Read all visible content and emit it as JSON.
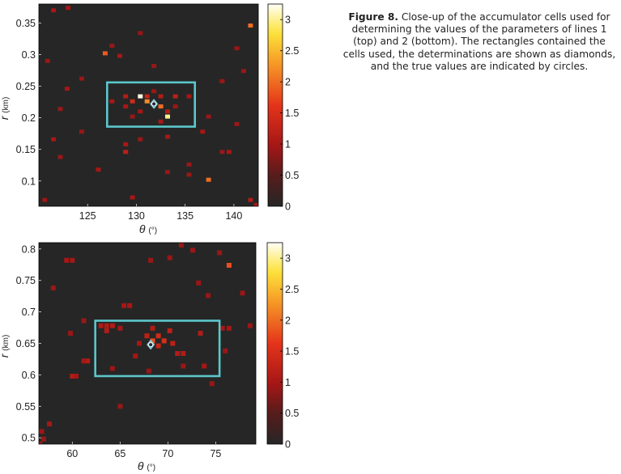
{
  "caption": {
    "label": "Figure 8.",
    "text": "Close-up of the accumulator cells used for determining the values of the parameters of lines 1 (top) and 2 (bottom). The rectangles contained the cells used, the determinations are shown as diamonds, and the true values are indicated by circles."
  },
  "chart_data": [
    {
      "type": "heatmap",
      "title": "",
      "xlabel": "θ (°)",
      "ylabel": "r (km)",
      "xlim": [
        120,
        142.5
      ],
      "ylim": [
        0.06,
        0.38
      ],
      "xticks": [
        125,
        130,
        135,
        140
      ],
      "yticks": [
        0.1,
        0.15,
        0.2,
        0.25,
        0.3,
        0.35
      ],
      "yticklabels": [
        "0.1",
        "0.15",
        "0.2",
        "0.25",
        "0.3",
        "0.35"
      ],
      "colorbar": {
        "range": [
          0,
          3.25
        ],
        "ticks": [
          0,
          0.5,
          1,
          1.5,
          2,
          2.5,
          3
        ],
        "ticklabels": [
          "0",
          "0.5",
          "1",
          "1.5",
          "2",
          "2.5",
          "3"
        ]
      },
      "background_value": 0,
      "rectangle": {
        "x": [
          127,
          136
        ],
        "y": [
          0.186,
          0.256
        ]
      },
      "determination": {
        "x": 131.8,
        "y": 0.222
      },
      "true_value": {
        "x": 131.8,
        "y": 0.222
      },
      "cells": [
        {
          "x": 130.4,
          "y": 0.234,
          "v": 3.2
        },
        {
          "x": 133.2,
          "y": 0.202,
          "v": 3.0
        },
        {
          "x": 131.1,
          "y": 0.226,
          "v": 2.2
        },
        {
          "x": 132.5,
          "y": 0.218,
          "v": 2.0
        },
        {
          "x": 129.6,
          "y": 0.226,
          "v": 1.4
        },
        {
          "x": 131.1,
          "y": 0.234,
          "v": 1.3
        },
        {
          "x": 134.0,
          "y": 0.234,
          "v": 1.2
        },
        {
          "x": 128.9,
          "y": 0.234,
          "v": 1.1
        },
        {
          "x": 132.5,
          "y": 0.234,
          "v": 1.1
        },
        {
          "x": 135.4,
          "y": 0.234,
          "v": 1.0
        },
        {
          "x": 127.5,
          "y": 0.226,
          "v": 1.0
        },
        {
          "x": 133.2,
          "y": 0.21,
          "v": 1.1
        },
        {
          "x": 130.4,
          "y": 0.21,
          "v": 1.0
        },
        {
          "x": 132.5,
          "y": 0.194,
          "v": 1.0
        },
        {
          "x": 134.0,
          "y": 0.218,
          "v": 0.9
        },
        {
          "x": 128.9,
          "y": 0.218,
          "v": 1.0
        },
        {
          "x": 131.8,
          "y": 0.242,
          "v": 0.9
        },
        {
          "x": 129.6,
          "y": 0.202,
          "v": 0.9
        },
        {
          "x": 126.8,
          "y": 0.302,
          "v": 1.9
        },
        {
          "x": 120.9,
          "y": 0.29,
          "v": 0.9
        },
        {
          "x": 121.5,
          "y": 0.37,
          "v": 1.0
        },
        {
          "x": 123.0,
          "y": 0.374,
          "v": 1.0
        },
        {
          "x": 127.5,
          "y": 0.314,
          "v": 0.9
        },
        {
          "x": 130.4,
          "y": 0.334,
          "v": 0.9
        },
        {
          "x": 128.3,
          "y": 0.298,
          "v": 1.0
        },
        {
          "x": 138.8,
          "y": 0.258,
          "v": 0.9
        },
        {
          "x": 141.7,
          "y": 0.346,
          "v": 2.0
        },
        {
          "x": 141.0,
          "y": 0.274,
          "v": 0.9
        },
        {
          "x": 140.3,
          "y": 0.31,
          "v": 0.9
        },
        {
          "x": 122.2,
          "y": 0.214,
          "v": 0.9
        },
        {
          "x": 121.5,
          "y": 0.166,
          "v": 1.0
        },
        {
          "x": 124.4,
          "y": 0.178,
          "v": 0.9
        },
        {
          "x": 128.9,
          "y": 0.158,
          "v": 1.0
        },
        {
          "x": 130.4,
          "y": 0.166,
          "v": 0.9
        },
        {
          "x": 133.2,
          "y": 0.17,
          "v": 1.0
        },
        {
          "x": 136.8,
          "y": 0.178,
          "v": 1.0
        },
        {
          "x": 139.5,
          "y": 0.146,
          "v": 1.0
        },
        {
          "x": 138.8,
          "y": 0.146,
          "v": 0.9
        },
        {
          "x": 137.4,
          "y": 0.102,
          "v": 2.0
        },
        {
          "x": 135.4,
          "y": 0.11,
          "v": 0.9
        },
        {
          "x": 128.9,
          "y": 0.146,
          "v": 1.2
        },
        {
          "x": 126.1,
          "y": 0.118,
          "v": 1.0
        },
        {
          "x": 133.2,
          "y": 0.114,
          "v": 0.9
        },
        {
          "x": 122.2,
          "y": 0.138,
          "v": 0.9
        },
        {
          "x": 129.6,
          "y": 0.074,
          "v": 1.0
        },
        {
          "x": 141.7,
          "y": 0.07,
          "v": 1.1
        },
        {
          "x": 142.3,
          "y": 0.062,
          "v": 1.0
        },
        {
          "x": 120.6,
          "y": 0.07,
          "v": 0.9
        },
        {
          "x": 131.8,
          "y": 0.282,
          "v": 0.9
        },
        {
          "x": 124.4,
          "y": 0.262,
          "v": 0.9
        },
        {
          "x": 137.4,
          "y": 0.202,
          "v": 0.9
        },
        {
          "x": 122.9,
          "y": 0.246,
          "v": 1.0
        },
        {
          "x": 135.4,
          "y": 0.126,
          "v": 0.9
        },
        {
          "x": 140.3,
          "y": 0.19,
          "v": 0.9
        }
      ]
    },
    {
      "type": "heatmap",
      "title": "",
      "xlabel": "θ (°)",
      "ylabel": "r (km)",
      "xlim": [
        56.5,
        79.2
      ],
      "ylim": [
        0.49,
        0.81
      ],
      "xticks": [
        60,
        65,
        70,
        75
      ],
      "yticks": [
        0.5,
        0.55,
        0.6,
        0.65,
        0.7,
        0.75,
        0.8
      ],
      "yticklabels": [
        "0.5",
        "0.55",
        "0.6",
        "0.65",
        "0.7",
        "0.75",
        "0.8"
      ],
      "colorbar": {
        "range": [
          0,
          3.25
        ],
        "ticks": [
          0,
          0.5,
          1,
          1.5,
          2,
          2.5,
          3
        ],
        "ticklabels": [
          "0",
          "0.5",
          "1",
          "1.5",
          "2",
          "2.5",
          "3"
        ]
      },
      "background_value": 0,
      "rectangle": {
        "x": [
          62.4,
          75.4
        ],
        "y": [
          0.598,
          0.686
        ]
      },
      "determination": {
        "x": 68.2,
        "y": 0.648
      },
      "true_value": {
        "x": 68.2,
        "y": 0.648
      },
      "cells": [
        {
          "x": 68.4,
          "y": 0.654,
          "v": 1.8
        },
        {
          "x": 69.6,
          "y": 0.654,
          "v": 1.5
        },
        {
          "x": 69.0,
          "y": 0.662,
          "v": 1.4
        },
        {
          "x": 70.2,
          "y": 0.67,
          "v": 1.2
        },
        {
          "x": 67.8,
          "y": 0.662,
          "v": 1.2
        },
        {
          "x": 69.0,
          "y": 0.646,
          "v": 1.3
        },
        {
          "x": 70.5,
          "y": 0.65,
          "v": 1.2
        },
        {
          "x": 71.0,
          "y": 0.634,
          "v": 1.1
        },
        {
          "x": 71.6,
          "y": 0.634,
          "v": 1.1
        },
        {
          "x": 68.4,
          "y": 0.674,
          "v": 1.1
        },
        {
          "x": 63.0,
          "y": 0.678,
          "v": 1.1
        },
        {
          "x": 63.6,
          "y": 0.678,
          "v": 1.1
        },
        {
          "x": 64.2,
          "y": 0.678,
          "v": 1.1
        },
        {
          "x": 63.6,
          "y": 0.67,
          "v": 1.1
        },
        {
          "x": 65.0,
          "y": 0.674,
          "v": 1.0
        },
        {
          "x": 66.6,
          "y": 0.63,
          "v": 1.0
        },
        {
          "x": 67.0,
          "y": 0.65,
          "v": 1.0
        },
        {
          "x": 73.4,
          "y": 0.666,
          "v": 1.1
        },
        {
          "x": 75.7,
          "y": 0.674,
          "v": 1.0
        },
        {
          "x": 76.4,
          "y": 0.674,
          "v": 1.0
        },
        {
          "x": 73.8,
          "y": 0.614,
          "v": 1.0
        },
        {
          "x": 61.6,
          "y": 0.622,
          "v": 1.1
        },
        {
          "x": 61.2,
          "y": 0.622,
          "v": 1.0
        },
        {
          "x": 60.0,
          "y": 0.598,
          "v": 1.1
        },
        {
          "x": 60.4,
          "y": 0.598,
          "v": 1.0
        },
        {
          "x": 59.8,
          "y": 0.666,
          "v": 0.9
        },
        {
          "x": 61.2,
          "y": 0.686,
          "v": 0.9
        },
        {
          "x": 58.0,
          "y": 0.738,
          "v": 0.9
        },
        {
          "x": 59.4,
          "y": 0.782,
          "v": 1.0
        },
        {
          "x": 60.0,
          "y": 0.782,
          "v": 1.0
        },
        {
          "x": 65.4,
          "y": 0.71,
          "v": 1.0
        },
        {
          "x": 66.0,
          "y": 0.71,
          "v": 1.0
        },
        {
          "x": 68.2,
          "y": 0.782,
          "v": 0.9
        },
        {
          "x": 70.2,
          "y": 0.786,
          "v": 0.9
        },
        {
          "x": 71.4,
          "y": 0.806,
          "v": 0.9
        },
        {
          "x": 72.6,
          "y": 0.798,
          "v": 0.9
        },
        {
          "x": 73.2,
          "y": 0.746,
          "v": 0.9
        },
        {
          "x": 74.2,
          "y": 0.726,
          "v": 0.9
        },
        {
          "x": 75.4,
          "y": 0.794,
          "v": 0.9
        },
        {
          "x": 76.4,
          "y": 0.774,
          "v": 1.8
        },
        {
          "x": 78.6,
          "y": 0.678,
          "v": 0.9
        },
        {
          "x": 76.0,
          "y": 0.638,
          "v": 0.9
        },
        {
          "x": 71.6,
          "y": 0.614,
          "v": 0.9
        },
        {
          "x": 68.0,
          "y": 0.606,
          "v": 0.9
        },
        {
          "x": 65.0,
          "y": 0.55,
          "v": 0.9
        },
        {
          "x": 57.6,
          "y": 0.522,
          "v": 1.0
        },
        {
          "x": 56.8,
          "y": 0.51,
          "v": 0.9
        },
        {
          "x": 57.0,
          "y": 0.498,
          "v": 0.9
        },
        {
          "x": 56.6,
          "y": 0.49,
          "v": 0.9
        },
        {
          "x": 74.6,
          "y": 0.586,
          "v": 0.9
        },
        {
          "x": 64.2,
          "y": 0.61,
          "v": 0.9
        },
        {
          "x": 77.8,
          "y": 0.73,
          "v": 0.9
        }
      ]
    }
  ]
}
